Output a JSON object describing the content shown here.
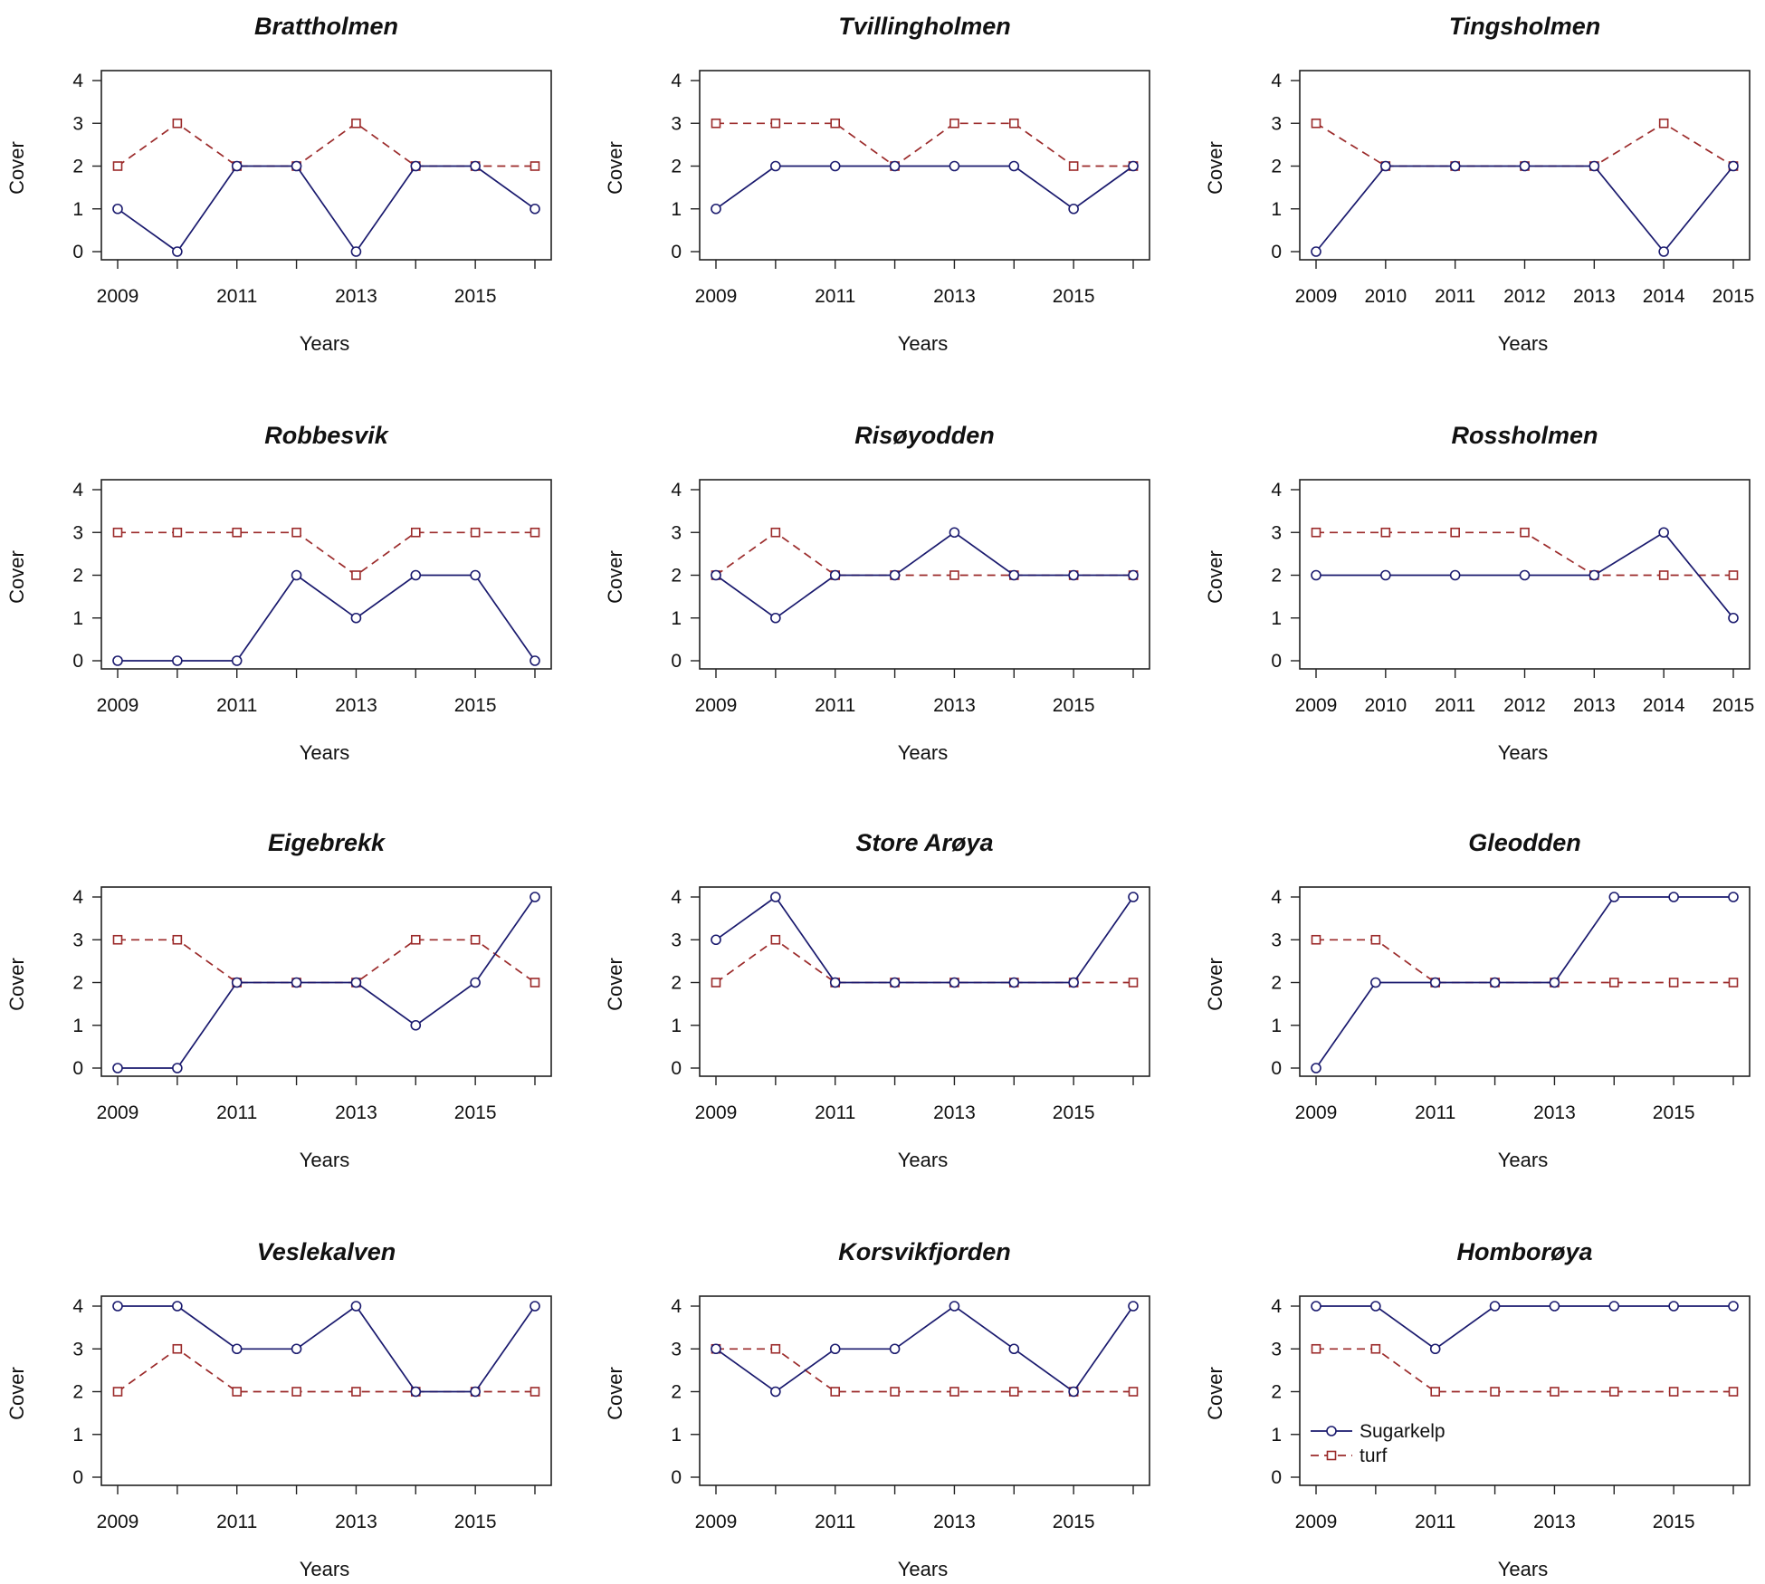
{
  "figure": {
    "y_axis_label": "Cover",
    "x_axis_label": "Years",
    "legend": [
      "Sugarkelp",
      "turf"
    ],
    "colors": {
      "Sugarkelp": "#1a1a6e",
      "turf": "#9b2a2a"
    }
  },
  "chart_data": [
    {
      "type": "line",
      "title": "Brattholmen",
      "xlabel": "Years",
      "ylabel": "Cover",
      "x": [
        2009,
        2010,
        2011,
        2012,
        2013,
        2014,
        2015,
        2016
      ],
      "xticks": [
        "2009",
        "2011",
        "2013",
        "2015"
      ],
      "ylim": [
        0,
        4
      ],
      "yticks": [
        "0",
        "1",
        "2",
        "3",
        "4"
      ],
      "series": [
        {
          "name": "Sugarkelp",
          "values": [
            1,
            0,
            2,
            2,
            0,
            2,
            2,
            1
          ]
        },
        {
          "name": "turf",
          "values": [
            2,
            3,
            2,
            2,
            3,
            2,
            2,
            2
          ]
        }
      ]
    },
    {
      "type": "line",
      "title": "Tvillingholmen",
      "xlabel": "Years",
      "ylabel": "Cover",
      "x": [
        2009,
        2010,
        2011,
        2012,
        2013,
        2014,
        2015,
        2016
      ],
      "xticks": [
        "2009",
        "2011",
        "2013",
        "2015"
      ],
      "ylim": [
        0,
        4
      ],
      "yticks": [
        "0",
        "1",
        "2",
        "3",
        "4"
      ],
      "series": [
        {
          "name": "Sugarkelp",
          "values": [
            1,
            2,
            2,
            2,
            2,
            2,
            1,
            2
          ]
        },
        {
          "name": "turf",
          "values": [
            3,
            3,
            3,
            2,
            3,
            3,
            2,
            2
          ]
        }
      ]
    },
    {
      "type": "line",
      "title": "Tingsholmen",
      "xlabel": "Years",
      "ylabel": "Cover",
      "x": [
        2009,
        2010,
        2011,
        2012,
        2013,
        2014,
        2015
      ],
      "xticks": [
        "2009",
        "2010",
        "2011",
        "2012",
        "2013",
        "2014",
        "2015"
      ],
      "ylim": [
        0,
        4
      ],
      "yticks": [
        "0",
        "1",
        "2",
        "3",
        "4"
      ],
      "series": [
        {
          "name": "Sugarkelp",
          "values": [
            0,
            2,
            2,
            2,
            2,
            0,
            2
          ]
        },
        {
          "name": "turf",
          "values": [
            3,
            2,
            2,
            2,
            2,
            3,
            2
          ]
        }
      ]
    },
    {
      "type": "line",
      "title": "Robbesvik",
      "xlabel": "Years",
      "ylabel": "Cover",
      "x": [
        2009,
        2010,
        2011,
        2012,
        2013,
        2014,
        2015,
        2016
      ],
      "xticks": [
        "2009",
        "2011",
        "2013",
        "2015"
      ],
      "ylim": [
        0,
        4
      ],
      "yticks": [
        "0",
        "1",
        "2",
        "3",
        "4"
      ],
      "series": [
        {
          "name": "Sugarkelp",
          "values": [
            0,
            0,
            0,
            2,
            1,
            2,
            2,
            0
          ]
        },
        {
          "name": "turf",
          "values": [
            3,
            3,
            3,
            3,
            2,
            3,
            3,
            3
          ]
        }
      ]
    },
    {
      "type": "line",
      "title": "Risøyodden",
      "xlabel": "Years",
      "ylabel": "Cover",
      "x": [
        2009,
        2010,
        2011,
        2012,
        2013,
        2014,
        2015,
        2016
      ],
      "xticks": [
        "2009",
        "2011",
        "2013",
        "2015"
      ],
      "ylim": [
        0,
        4
      ],
      "yticks": [
        "0",
        "1",
        "2",
        "3",
        "4"
      ],
      "series": [
        {
          "name": "Sugarkelp",
          "values": [
            2,
            1,
            2,
            2,
            3,
            2,
            2,
            2
          ]
        },
        {
          "name": "turf",
          "values": [
            2,
            3,
            2,
            2,
            2,
            2,
            2,
            2
          ]
        }
      ]
    },
    {
      "type": "line",
      "title": "Rossholmen",
      "xlabel": "Years",
      "ylabel": "Cover",
      "x": [
        2009,
        2010,
        2011,
        2012,
        2013,
        2014,
        2015
      ],
      "xticks": [
        "2009",
        "2010",
        "2011",
        "2012",
        "2013",
        "2014",
        "2015"
      ],
      "ylim": [
        0,
        4
      ],
      "yticks": [
        "0",
        "1",
        "2",
        "3",
        "4"
      ],
      "series": [
        {
          "name": "Sugarkelp",
          "values": [
            2,
            2,
            2,
            2,
            2,
            3,
            1
          ]
        },
        {
          "name": "turf",
          "values": [
            3,
            3,
            3,
            3,
            2,
            2,
            2
          ]
        }
      ]
    },
    {
      "type": "line",
      "title": "Eigebrekk",
      "xlabel": "Years",
      "ylabel": "Cover",
      "x": [
        2009,
        2010,
        2011,
        2012,
        2013,
        2014,
        2015,
        2016
      ],
      "xticks": [
        "2009",
        "2011",
        "2013",
        "2015"
      ],
      "ylim": [
        0,
        4
      ],
      "yticks": [
        "0",
        "1",
        "2",
        "3",
        "4"
      ],
      "series": [
        {
          "name": "Sugarkelp",
          "values": [
            0,
            0,
            2,
            2,
            2,
            1,
            2,
            4
          ]
        },
        {
          "name": "turf",
          "values": [
            3,
            3,
            2,
            2,
            2,
            3,
            3,
            2
          ]
        }
      ]
    },
    {
      "type": "line",
      "title": "Store Arøya",
      "xlabel": "Years",
      "ylabel": "Cover",
      "x": [
        2009,
        2010,
        2011,
        2012,
        2013,
        2014,
        2015,
        2016
      ],
      "xticks": [
        "2009",
        "2011",
        "2013",
        "2015"
      ],
      "ylim": [
        0,
        4
      ],
      "yticks": [
        "0",
        "1",
        "2",
        "3",
        "4"
      ],
      "series": [
        {
          "name": "Sugarkelp",
          "values": [
            3,
            4,
            2,
            2,
            2,
            2,
            2,
            4
          ]
        },
        {
          "name": "turf",
          "values": [
            2,
            3,
            2,
            2,
            2,
            2,
            2,
            2
          ]
        }
      ]
    },
    {
      "type": "line",
      "title": "Gleodden",
      "xlabel": "Years",
      "ylabel": "Cover",
      "x": [
        2009,
        2010,
        2011,
        2012,
        2013,
        2014,
        2015,
        2016
      ],
      "xticks": [
        "2009",
        "2011",
        "2013",
        "2015"
      ],
      "ylim": [
        0,
        4
      ],
      "yticks": [
        "0",
        "1",
        "2",
        "3",
        "4"
      ],
      "series": [
        {
          "name": "Sugarkelp",
          "values": [
            0,
            2,
            2,
            2,
            2,
            4,
            4,
            4
          ]
        },
        {
          "name": "turf",
          "values": [
            3,
            3,
            2,
            2,
            2,
            2,
            2,
            2
          ]
        }
      ]
    },
    {
      "type": "line",
      "title": "Veslekalven",
      "xlabel": "Years",
      "ylabel": "Cover",
      "x": [
        2009,
        2010,
        2011,
        2012,
        2013,
        2014,
        2015,
        2016
      ],
      "xticks": [
        "2009",
        "2011",
        "2013",
        "2015"
      ],
      "ylim": [
        0,
        4
      ],
      "yticks": [
        "0",
        "1",
        "2",
        "3",
        "4"
      ],
      "series": [
        {
          "name": "Sugarkelp",
          "values": [
            4,
            4,
            3,
            3,
            4,
            2,
            2,
            4
          ]
        },
        {
          "name": "turf",
          "values": [
            2,
            3,
            2,
            2,
            2,
            2,
            2,
            2
          ]
        }
      ]
    },
    {
      "type": "line",
      "title": "Korsvikfjorden",
      "xlabel": "Years",
      "ylabel": "Cover",
      "x": [
        2009,
        2010,
        2011,
        2012,
        2013,
        2014,
        2015,
        2016
      ],
      "xticks": [
        "2009",
        "2011",
        "2013",
        "2015"
      ],
      "ylim": [
        0,
        4
      ],
      "yticks": [
        "0",
        "1",
        "2",
        "3",
        "4"
      ],
      "series": [
        {
          "name": "Sugarkelp",
          "values": [
            3,
            2,
            3,
            3,
            4,
            3,
            2,
            4
          ]
        },
        {
          "name": "turf",
          "values": [
            3,
            3,
            2,
            2,
            2,
            2,
            2,
            2
          ]
        }
      ]
    },
    {
      "type": "line",
      "title": "Homborøya",
      "xlabel": "Years",
      "ylabel": "Cover",
      "x": [
        2009,
        2010,
        2011,
        2012,
        2013,
        2014,
        2015,
        2016
      ],
      "xticks": [
        "2009",
        "2011",
        "2013",
        "2015"
      ],
      "ylim": [
        0,
        4
      ],
      "yticks": [
        "0",
        "1",
        "2",
        "3",
        "4"
      ],
      "legend": [
        "Sugarkelp",
        "turf"
      ],
      "legend_position": "bottom-left",
      "series": [
        {
          "name": "Sugarkelp",
          "values": [
            4,
            4,
            3,
            4,
            4,
            4,
            4,
            4
          ]
        },
        {
          "name": "turf",
          "values": [
            3,
            3,
            2,
            2,
            2,
            2,
            2,
            2
          ]
        }
      ]
    }
  ]
}
